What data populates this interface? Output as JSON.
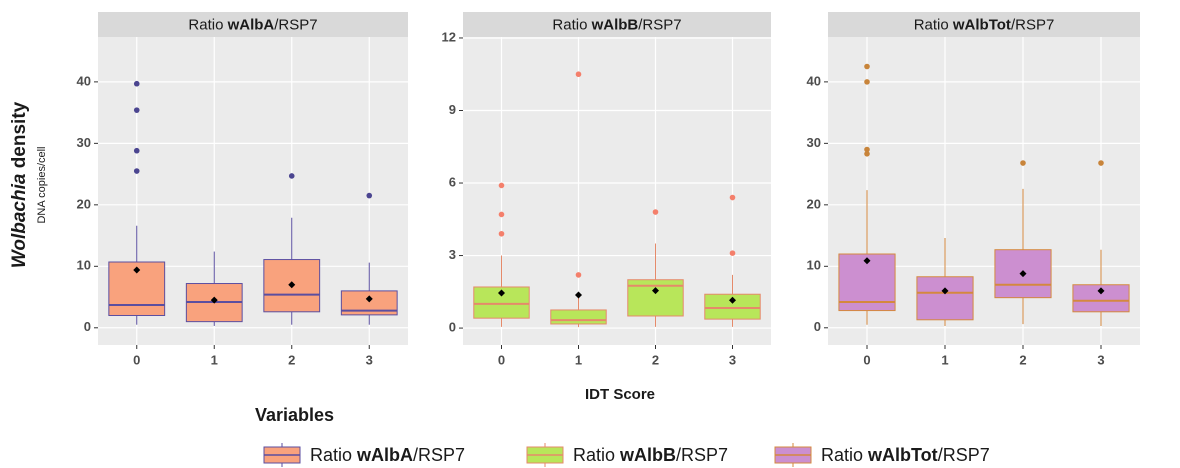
{
  "figure": {
    "ylabel": [
      "Wolbachia",
      " density"
    ],
    "ylabel_sub": "DNA copies/cell",
    "xlabel": "IDT Score",
    "legend_title": "Variables"
  },
  "chart_data": [
    {
      "type": "box",
      "title": [
        "Ratio ",
        "wAlbA",
        "/RSP7"
      ],
      "categories": [
        "0",
        "1",
        "2",
        "3"
      ],
      "color": "#f9a27d",
      "line_color": "#5b4ea0",
      "outlier_color": "#4b4590",
      "ylim": [
        -2.8,
        47.3
      ],
      "yticks": [
        0,
        10,
        20,
        30,
        40
      ],
      "grid": true,
      "boxes": [
        {
          "min": 0.5,
          "q1": 2.0,
          "median": 3.7,
          "q3": 10.7,
          "max": 16.6,
          "mean": 9.4,
          "outliers": [
            39.7,
            35.4,
            28.8,
            25.5
          ]
        },
        {
          "min": 0.3,
          "q1": 1.0,
          "median": 4.2,
          "q3": 7.2,
          "max": 12.4,
          "mean": 4.5,
          "outliers": []
        },
        {
          "min": 0.5,
          "q1": 2.6,
          "median": 5.4,
          "q3": 11.1,
          "max": 17.9,
          "mean": 7.0,
          "outliers": [
            24.7
          ]
        },
        {
          "min": 0.5,
          "q1": 2.1,
          "median": 2.8,
          "q3": 6.0,
          "max": 10.6,
          "mean": 4.7,
          "outliers": [
            21.5
          ]
        }
      ]
    },
    {
      "type": "box",
      "title": [
        "Ratio ",
        "wAlbB",
        "/RSP7"
      ],
      "categories": [
        "0",
        "1",
        "2",
        "3"
      ],
      "color": "#b8e65a",
      "line_color": "#e58a6a",
      "outlier_color": "#f47f6b",
      "ylim": [
        -0.7,
        12.04
      ],
      "yticks": [
        0,
        3,
        6,
        9,
        12
      ],
      "grid": true,
      "boxes": [
        {
          "min": 0.05,
          "q1": 0.41,
          "median": 1.0,
          "q3": 1.7,
          "max": 3.0,
          "mean": 1.45,
          "outliers": [
            5.9,
            4.7,
            3.9
          ]
        },
        {
          "min": 0.04,
          "q1": 0.17,
          "median": 0.33,
          "q3": 0.75,
          "max": 1.45,
          "mean": 1.37,
          "outliers": [
            10.5,
            2.2
          ]
        },
        {
          "min": 0.05,
          "q1": 0.5,
          "median": 1.75,
          "q3": 2.0,
          "max": 3.5,
          "mean": 1.55,
          "outliers": [
            4.8
          ]
        },
        {
          "min": 0.05,
          "q1": 0.37,
          "median": 0.83,
          "q3": 1.4,
          "max": 2.2,
          "mean": 1.15,
          "outliers": [
            5.4,
            3.1
          ]
        }
      ]
    },
    {
      "type": "box",
      "title": [
        "Ratio ",
        "wAlbTot",
        "/RSP7"
      ],
      "categories": [
        "0",
        "1",
        "2",
        "3"
      ],
      "color": "#cc8fd0",
      "line_color": "#d4883f",
      "outlier_color": "#c8843a",
      "ylim": [
        -2.8,
        47.3
      ],
      "yticks": [
        0,
        10,
        20,
        30,
        40
      ],
      "grid": true,
      "boxes": [
        {
          "min": 0.5,
          "q1": 2.8,
          "median": 4.2,
          "q3": 12.0,
          "max": 22.4,
          "mean": 10.9,
          "outliers": [
            42.5,
            40,
            29,
            28.3
          ]
        },
        {
          "min": 0.3,
          "q1": 1.3,
          "median": 5.7,
          "q3": 8.3,
          "max": 14.6,
          "mean": 6.0,
          "outliers": []
        },
        {
          "min": 0.6,
          "q1": 4.9,
          "median": 7.0,
          "q3": 12.7,
          "max": 22.6,
          "mean": 8.8,
          "outliers": [
            26.8
          ]
        },
        {
          "min": 0.3,
          "q1": 2.6,
          "median": 4.4,
          "q3": 7.0,
          "max": 12.7,
          "mean": 6.0,
          "outliers": [
            26.8
          ]
        }
      ]
    }
  ]
}
